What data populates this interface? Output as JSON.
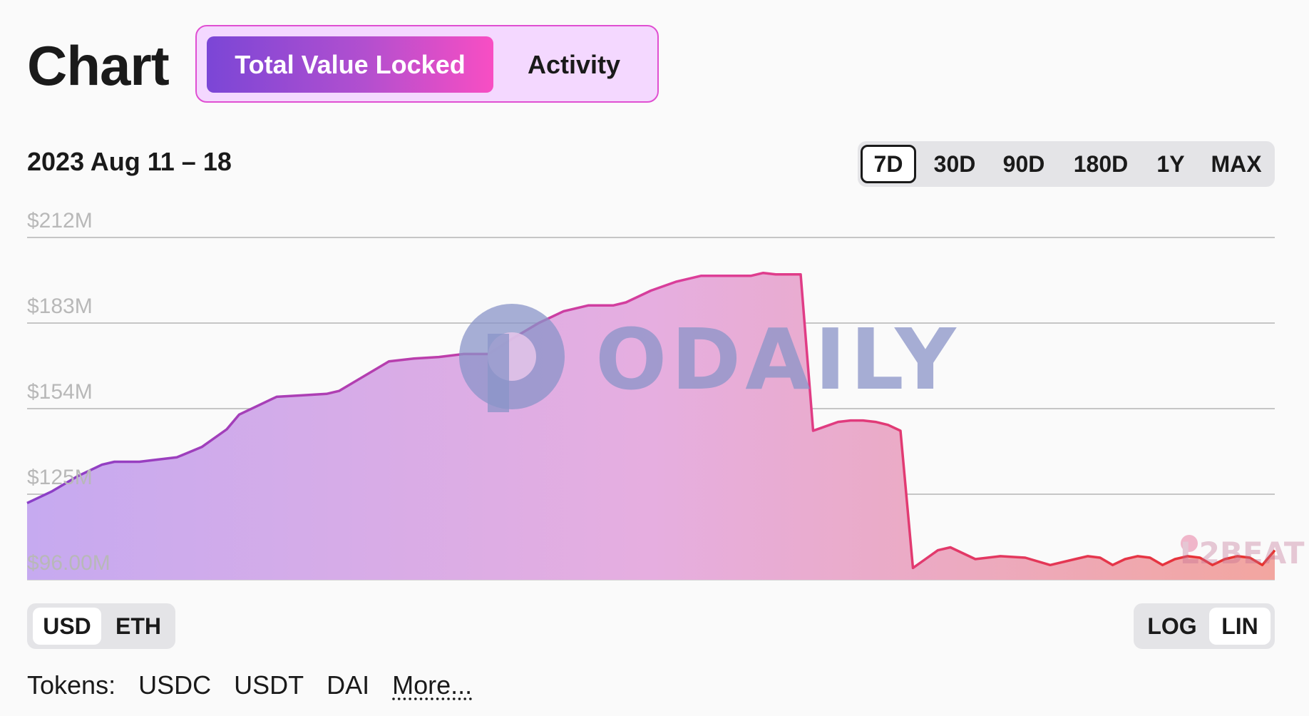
{
  "header": {
    "title": "Chart"
  },
  "tabs": [
    {
      "label": "Total Value Locked",
      "active": true
    },
    {
      "label": "Activity",
      "active": false
    }
  ],
  "date_range": "2023 Aug 11 – 18",
  "ranges": [
    {
      "label": "7D",
      "active": true
    },
    {
      "label": "30D",
      "active": false
    },
    {
      "label": "90D",
      "active": false
    },
    {
      "label": "180D",
      "active": false
    },
    {
      "label": "1Y",
      "active": false
    },
    {
      "label": "MAX",
      "active": false
    }
  ],
  "currency_toggle": [
    {
      "label": "USD",
      "active": true
    },
    {
      "label": "ETH",
      "active": false
    }
  ],
  "scale_toggle": [
    {
      "label": "LOG",
      "active": false
    },
    {
      "label": "LIN",
      "active": true
    }
  ],
  "tokens": {
    "label": "Tokens:",
    "items": [
      "USDC",
      "USDT",
      "DAI"
    ],
    "more": "More..."
  },
  "watermarks": {
    "main": "ODAILY",
    "corner": "L2BEAT"
  },
  "colors": {
    "start": "#8a3fc8",
    "mid": "#de3e97",
    "end": "#e8322a"
  },
  "chart_data": {
    "type": "area",
    "x_range": [
      "2023-08-11",
      "2023-08-18"
    ],
    "y_tick_labels": [
      "$212M",
      "$183M",
      "$154M",
      "$125M",
      "$96.00M"
    ],
    "y_ticks": [
      212,
      183,
      154,
      125,
      96
    ],
    "ylim": [
      96,
      212
    ],
    "grid": true,
    "series": [
      {
        "x": [
          0,
          0.02,
          0.04,
          0.06,
          0.07,
          0.09,
          0.1,
          0.12,
          0.14,
          0.16,
          0.17,
          0.19,
          0.2,
          0.22,
          0.24,
          0.25,
          0.27,
          0.29,
          0.31,
          0.33,
          0.35,
          0.37,
          0.39,
          0.41,
          0.43,
          0.45,
          0.47,
          0.48,
          0.5,
          0.52,
          0.54,
          0.56,
          0.58,
          0.59,
          0.6,
          0.61,
          0.62,
          0.63,
          0.64,
          0.65,
          0.66,
          0.67,
          0.68,
          0.69,
          0.7,
          0.71,
          0.72,
          0.73,
          0.74,
          0.76,
          0.78,
          0.8,
          0.82,
          0.84,
          0.85,
          0.86,
          0.87,
          0.88,
          0.89,
          0.9,
          0.91,
          0.92,
          0.93,
          0.94,
          0.95,
          0.96,
          0.97,
          0.98,
          0.99,
          1.0
        ],
        "values": [
          122,
          126,
          131,
          135,
          136,
          136,
          136.5,
          137.5,
          141,
          147,
          152,
          156,
          158,
          158.5,
          159,
          160,
          165,
          170,
          171,
          171.5,
          172.5,
          172.5,
          178,
          183,
          187,
          189,
          189,
          190,
          194,
          197,
          199,
          199,
          199,
          200,
          199.5,
          199.5,
          199.5,
          146.5,
          148,
          149.5,
          150,
          150,
          149.5,
          148.5,
          146.5,
          100,
          103,
          106,
          107,
          103,
          104,
          103.5,
          101,
          103,
          104,
          103.5,
          101,
          103,
          104,
          103.5,
          101,
          103,
          104,
          103.5,
          101,
          103,
          104,
          103.5,
          101,
          106
        ]
      }
    ]
  }
}
